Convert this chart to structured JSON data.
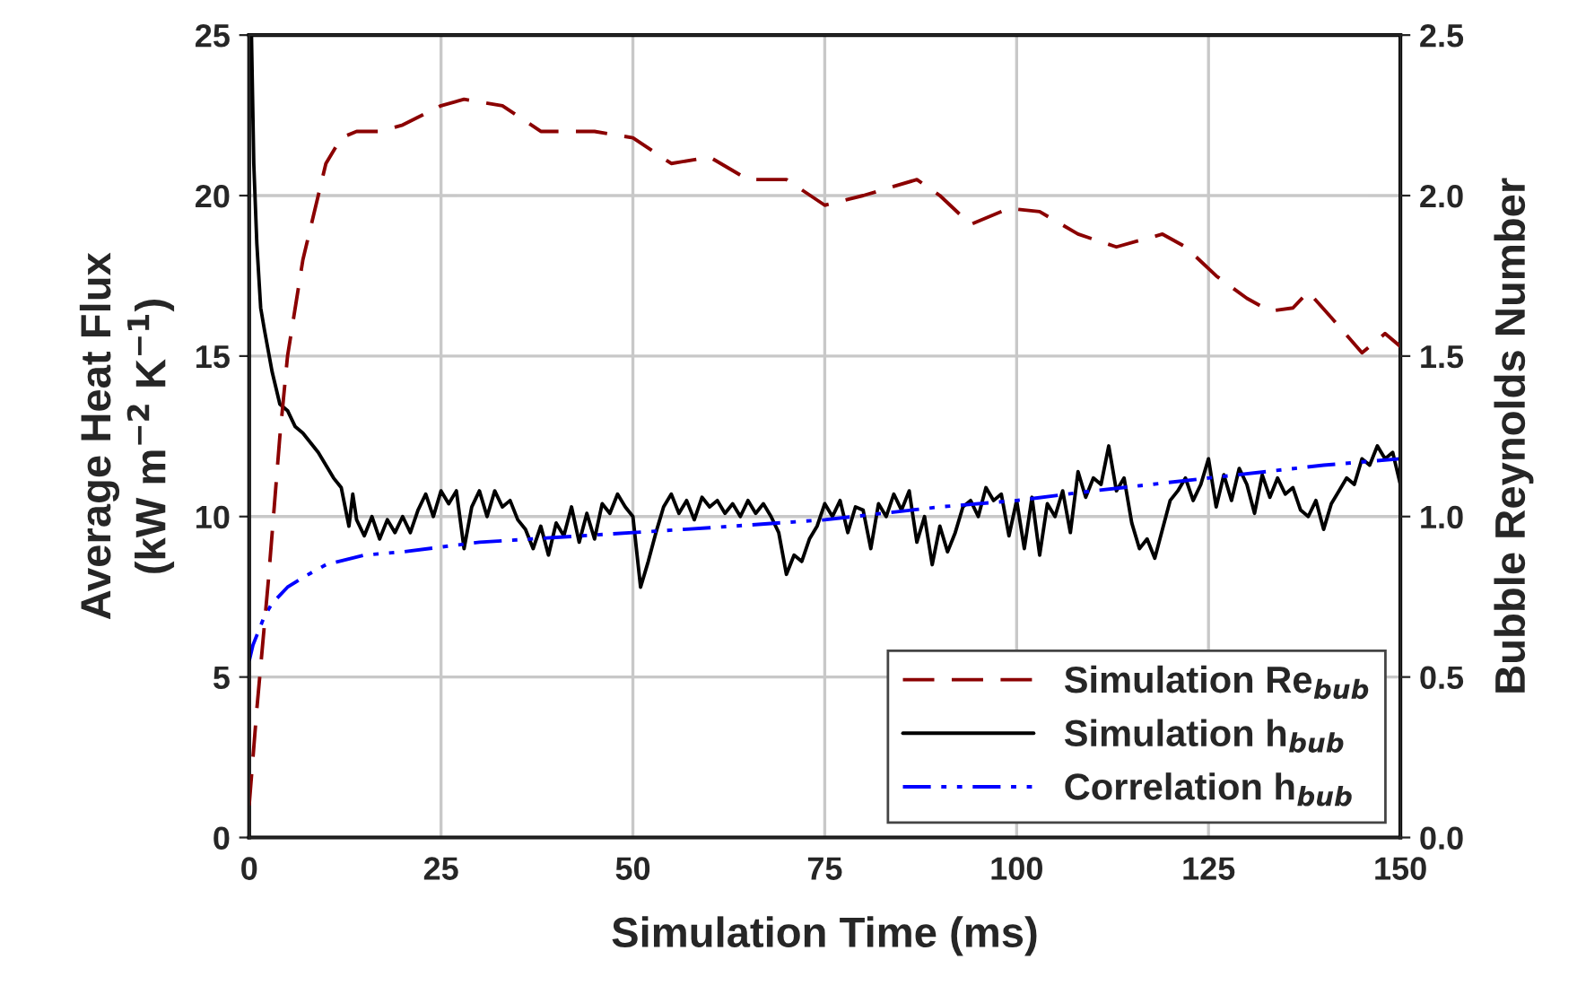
{
  "chart_data": {
    "type": "line",
    "xlabel": "Simulation Time (ms)",
    "ylabel": "Average Heat Flux\n(kW m$^{−2}$ K$^{−1}$)",
    "y2label": "Bubble Reynolds Number",
    "xlim": [
      0,
      150
    ],
    "xticks": [
      0,
      25,
      50,
      75,
      100,
      125,
      150
    ],
    "ylim": [
      0,
      25
    ],
    "yticks": [
      0,
      5,
      10,
      15,
      20,
      25
    ],
    "y2lim": [
      0,
      2.5
    ],
    "y2ticks": [
      {
        "value": 0,
        "label": "0.0"
      },
      {
        "value": 0.5,
        "label": "0.5"
      },
      {
        "value": 1,
        "label": "1.0"
      },
      {
        "value": 1.5,
        "label": "1.5"
      },
      {
        "value": 2,
        "label": "2.0"
      },
      {
        "value": 2.5,
        "label": "2.5"
      }
    ],
    "grid": true,
    "legend": "bottom right",
    "series": [
      {
        "name": "Simulation Re$_{bub}$",
        "color": "#8b0000",
        "axis": "y2",
        "line_style": "dashed",
        "x": [
          0,
          1,
          2.5,
          4,
          5,
          7,
          10,
          12,
          14,
          17,
          20,
          25,
          28,
          33,
          38,
          42,
          45,
          50,
          55,
          60,
          65,
          70,
          75,
          80,
          87,
          90,
          94,
          99,
          103,
          108,
          113,
          119,
          122,
          126,
          130,
          133,
          136,
          138,
          141,
          145,
          148,
          150
        ],
        "values": [
          0.1,
          0.4,
          0.8,
          1.25,
          1.5,
          1.8,
          2.1,
          2.18,
          2.2,
          2.2,
          2.22,
          2.28,
          2.3,
          2.28,
          2.2,
          2.2,
          2.2,
          2.18,
          2.1,
          2.12,
          2.05,
          2.05,
          1.97,
          2.0,
          2.05,
          2.0,
          1.91,
          1.96,
          1.95,
          1.88,
          1.84,
          1.88,
          1.84,
          1.75,
          1.68,
          1.64,
          1.65,
          1.7,
          1.62,
          1.51,
          1.57,
          1.53
        ]
      },
      {
        "name": "Simulation h$_{bub}$",
        "color": "#000000",
        "line_style": "solid",
        "x": [
          0.3,
          0.6,
          1,
          1.5,
          2,
          3,
          4,
          5,
          6,
          7,
          8,
          9,
          10,
          11,
          12,
          13,
          13.5,
          14,
          15,
          16,
          17,
          18,
          19,
          20,
          21,
          22,
          23,
          24,
          25,
          26,
          27,
          28,
          29,
          30,
          31,
          32,
          33,
          34,
          35,
          36,
          37,
          38,
          39,
          40,
          41,
          42,
          43,
          44,
          45,
          46,
          47,
          48,
          49,
          50,
          51,
          52,
          53,
          54,
          55,
          56,
          57,
          58,
          59,
          60,
          61,
          62,
          63,
          64,
          65,
          66,
          67,
          68,
          69,
          70,
          71,
          72,
          73,
          74,
          75,
          76,
          77,
          78,
          79,
          80,
          81,
          82,
          83,
          84,
          85,
          86,
          87,
          88,
          89,
          90,
          91,
          92,
          93,
          94,
          95,
          96,
          97,
          98,
          99,
          100,
          101,
          102,
          103,
          104,
          105,
          106,
          107,
          108,
          109,
          110,
          111,
          112,
          113,
          114,
          115,
          116,
          117,
          118,
          119,
          120,
          121,
          122,
          123,
          124,
          125,
          126,
          127,
          128,
          129,
          130,
          131,
          132,
          133,
          134,
          135,
          136,
          137,
          138,
          139,
          140,
          141,
          142,
          143,
          144,
          145,
          146,
          147,
          148,
          149,
          150
        ],
        "values": [
          25,
          21,
          18.5,
          16.5,
          15.8,
          14.5,
          13.5,
          13.3,
          12.8,
          12.6,
          12.3,
          12.0,
          11.6,
          11.2,
          10.9,
          9.7,
          10.7,
          9.9,
          9.4,
          10.0,
          9.3,
          9.9,
          9.5,
          10.0,
          9.5,
          10.2,
          10.7,
          10.0,
          10.8,
          10.4,
          10.8,
          9.0,
          10.3,
          10.8,
          10.0,
          10.8,
          10.3,
          10.5,
          9.9,
          9.6,
          9.0,
          9.7,
          8.8,
          9.8,
          9.4,
          10.3,
          9.2,
          10.1,
          9.3,
          10.4,
          10.1,
          10.7,
          10.3,
          10.0,
          7.8,
          8.6,
          9.5,
          10.3,
          10.7,
          10.1,
          10.5,
          9.9,
          10.6,
          10.3,
          10.5,
          10.1,
          10.4,
          10.0,
          10.5,
          10.1,
          10.4,
          10.0,
          9.5,
          8.2,
          8.8,
          8.6,
          9.3,
          9.7,
          10.4,
          10.0,
          10.5,
          9.5,
          10.3,
          10.2,
          9.0,
          10.4,
          10.0,
          10.7,
          10.2,
          10.8,
          9.2,
          10.0,
          8.5,
          9.7,
          8.9,
          9.5,
          10.3,
          10.5,
          10.0,
          10.9,
          10.5,
          10.7,
          9.4,
          10.5,
          9.0,
          10.6,
          8.8,
          10.4,
          10.0,
          10.8,
          9.5,
          11.4,
          10.6,
          11.2,
          11.0,
          12.2,
          10.8,
          11.2,
          9.8,
          9.0,
          9.3,
          8.7,
          9.6,
          10.5,
          10.8,
          11.2,
          10.5,
          11.0,
          11.8,
          10.3,
          11.3,
          10.5,
          11.5,
          11.0,
          10.1,
          11.3,
          10.6,
          11.2,
          10.7,
          10.9,
          10.2,
          10.0,
          10.5,
          9.6,
          10.4,
          10.8,
          11.2,
          11.0,
          11.8,
          11.6,
          12.2,
          11.8,
          12.0,
          11.0
        ]
      },
      {
        "name": "Correlation h$_{bub}$",
        "color": "#0000ff",
        "line_style": "dashdotdot",
        "x": [
          0,
          0.5,
          1,
          2,
          3,
          5,
          7,
          10,
          15,
          20,
          30,
          40,
          50,
          60,
          75,
          90,
          100,
          110,
          125,
          140,
          150
        ],
        "values": [
          5.5,
          6.0,
          6.3,
          6.9,
          7.3,
          7.8,
          8.1,
          8.5,
          8.8,
          8.9,
          9.2,
          9.35,
          9.5,
          9.65,
          9.9,
          10.3,
          10.5,
          10.8,
          11.2,
          11.6,
          11.8
        ]
      }
    ]
  }
}
